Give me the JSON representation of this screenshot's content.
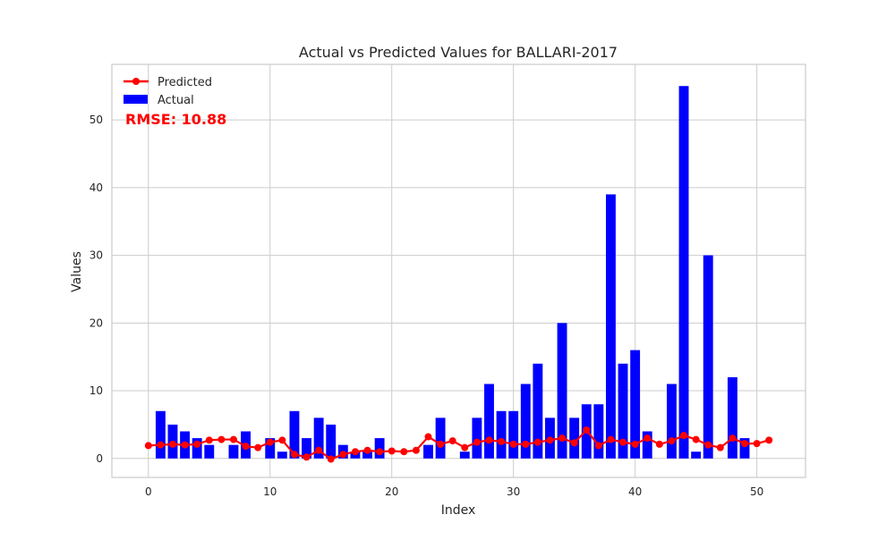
{
  "chart_data": {
    "type": "bar",
    "title": "Actual vs Predicted Values for BALLARI-2017",
    "xlabel": "Index",
    "ylabel": "Values",
    "xlim": [
      -3,
      54
    ],
    "ylim": [
      -2.8,
      58.2
    ],
    "xticks": [
      0,
      10,
      20,
      30,
      40,
      50
    ],
    "yticks": [
      0,
      10,
      20,
      30,
      40,
      50
    ],
    "grid": true,
    "legend_position": "top-left",
    "annotation": "RMSE: 10.88",
    "x": [
      0,
      1,
      2,
      3,
      4,
      5,
      6,
      7,
      8,
      9,
      10,
      11,
      12,
      13,
      14,
      15,
      16,
      17,
      18,
      19,
      20,
      21,
      22,
      23,
      24,
      25,
      26,
      27,
      28,
      29,
      30,
      31,
      32,
      33,
      34,
      35,
      36,
      37,
      38,
      39,
      40,
      41,
      42,
      43,
      44,
      45,
      46,
      47,
      48,
      49,
      50,
      51
    ],
    "series": [
      {
        "name": "Actual",
        "type": "bar",
        "color": "#0000ff",
        "values": [
          0,
          7,
          5,
          4,
          3,
          2,
          0,
          2,
          4,
          0,
          3,
          1,
          7,
          3,
          6,
          5,
          2,
          1,
          1,
          3,
          0,
          0,
          0,
          2,
          6,
          0,
          1,
          6,
          11,
          7,
          7,
          11,
          14,
          6,
          20,
          6,
          8,
          8,
          39,
          14,
          16,
          4,
          0,
          11,
          55,
          1,
          30,
          0,
          12,
          3,
          0,
          0
        ]
      },
      {
        "name": "Predicted",
        "type": "line",
        "color": "#ff0000",
        "values": [
          1.9,
          2.0,
          2.1,
          2.0,
          2.1,
          2.7,
          2.8,
          2.8,
          1.8,
          1.6,
          2.4,
          2.7,
          0.6,
          0.2,
          1.2,
          -0.1,
          0.6,
          1.0,
          1.2,
          1.0,
          1.1,
          1.0,
          1.2,
          3.2,
          2.1,
          2.6,
          1.6,
          2.4,
          2.7,
          2.5,
          2.1,
          2.1,
          2.4,
          2.7,
          3.0,
          2.3,
          4.2,
          1.9,
          2.8,
          2.4,
          2.1,
          3.0,
          2.1,
          2.6,
          3.4,
          2.8,
          2.0,
          1.6,
          3.0,
          2.2,
          2.2,
          2.7
        ]
      }
    ]
  }
}
